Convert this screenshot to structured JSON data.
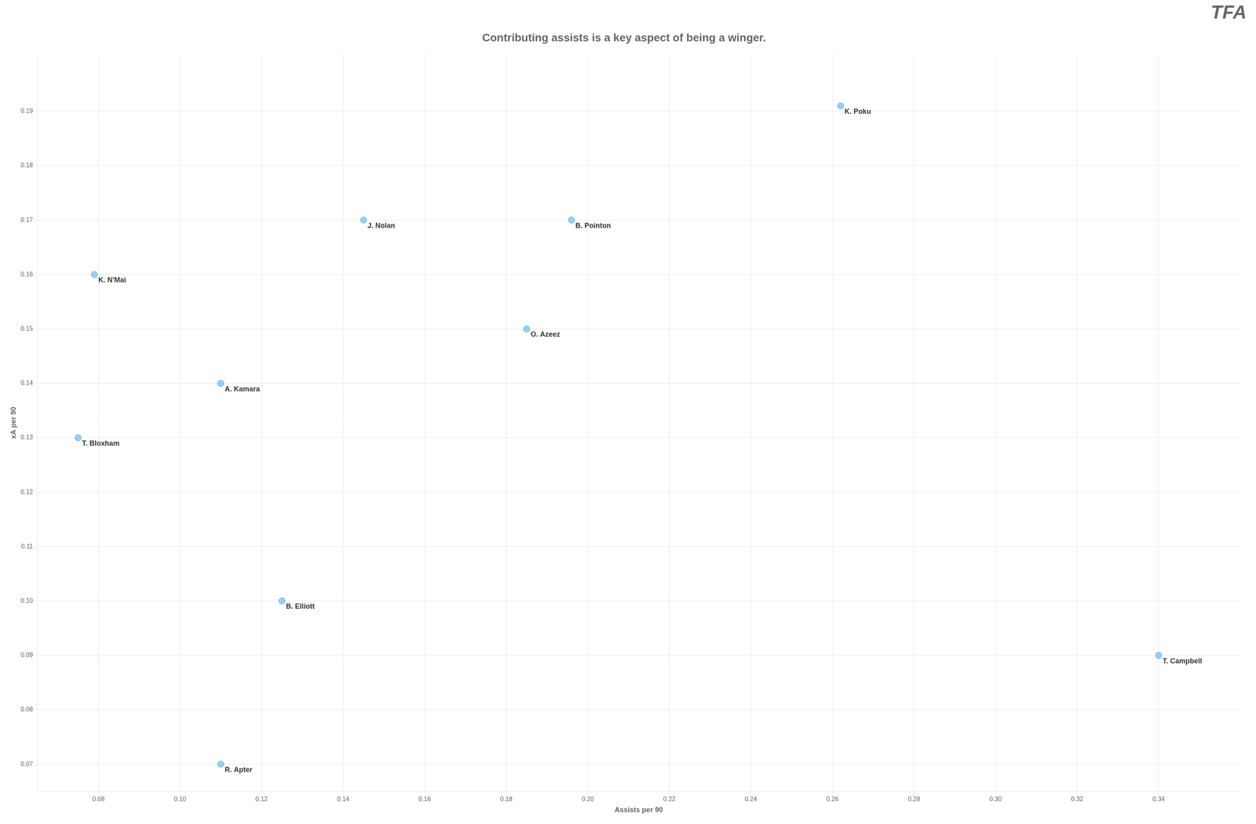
{
  "chart_data": {
    "type": "scatter",
    "title": "Contributing assists is a key aspect of being a winger.",
    "xlabel": "Assists per 90",
    "ylabel": "xA per 90",
    "x": [
      0.262,
      0.145,
      0.196,
      0.079,
      0.185,
      0.11,
      0.075,
      0.125,
      0.34,
      0.11
    ],
    "values": [
      0.191,
      0.17,
      0.17,
      0.16,
      0.15,
      0.14,
      0.13,
      0.1,
      0.09,
      0.07
    ],
    "labels": [
      "K. Poku",
      "J. Nolan",
      "B. Pointon",
      "K. N'Mai",
      "O. Azeez",
      "A. Kamara",
      "T. Bloxham",
      "B. Elliott",
      "T. Campbell",
      "R. Apter"
    ],
    "xlim": [
      0.065,
      0.36
    ],
    "ylim": [
      0.065,
      0.2005
    ],
    "xticks": [
      0.08,
      {
        "value": 0.1,
        "label": "0.10"
      },
      0.12,
      0.14,
      0.16,
      0.18,
      {
        "value": 0.2,
        "label": "0.20"
      },
      0.22,
      0.24,
      0.26,
      0.28,
      {
        "value": 0.3,
        "label": "0.30"
      },
      0.32,
      0.34
    ],
    "yticks": [
      0.07,
      0.08,
      0.09,
      {
        "value": 0.1,
        "label": "0.10"
      },
      0.11,
      0.12,
      0.13,
      0.14,
      0.15,
      0.16,
      0.17,
      0.18,
      0.19
    ],
    "grid": true,
    "annotations": [
      "TFA"
    ]
  }
}
